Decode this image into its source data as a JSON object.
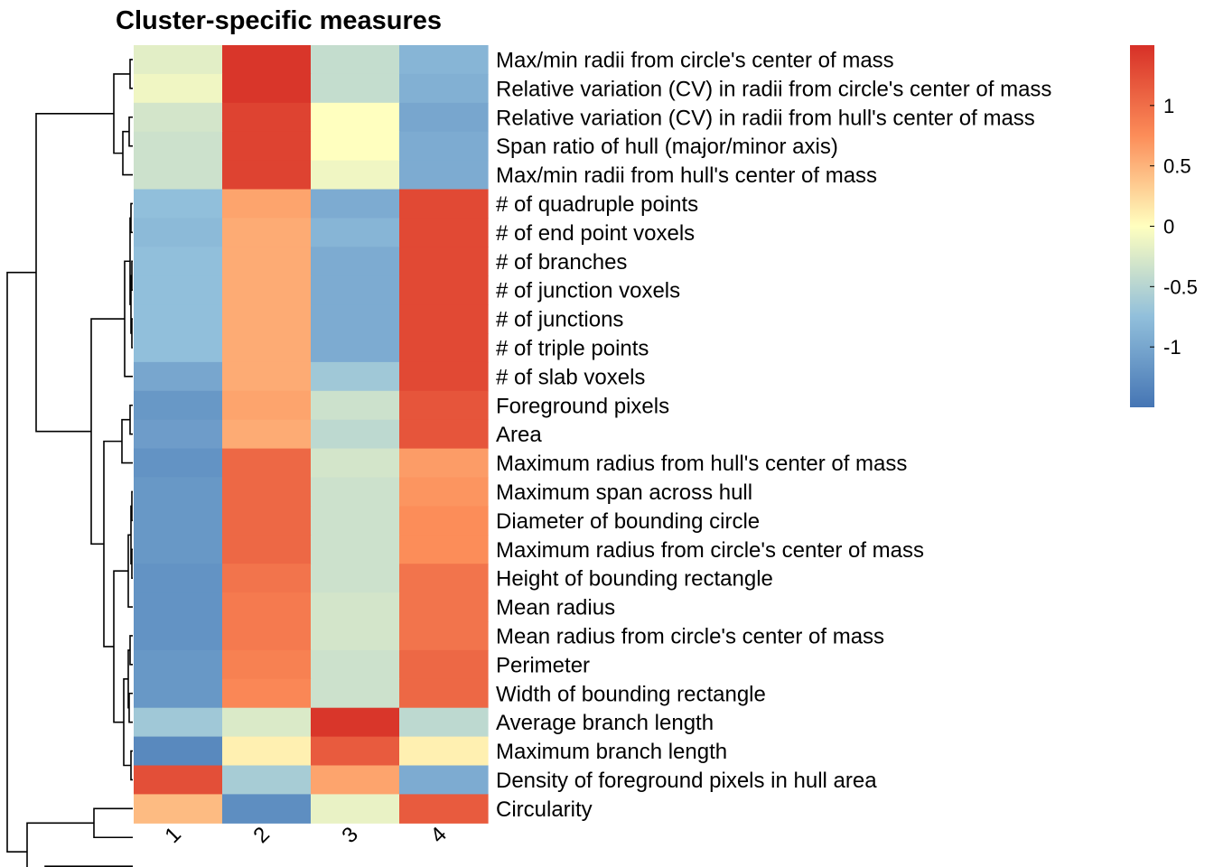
{
  "chart_data": {
    "type": "heatmap",
    "title": "Cluster-specific measures",
    "columns": [
      "1",
      "2",
      "3",
      "4"
    ],
    "rows": [
      "Max/min radii from circle's center of mass",
      "Relative variation (CV) in radii from circle's center of mass",
      "Relative variation (CV) in radii from hull's center of mass",
      "Span ratio of hull (major/minor axis)",
      "Max/min radii from hull's center of mass",
      "# of quadruple points",
      "# of end point voxels",
      "# of branches",
      "# of junction voxels",
      "# of junctions",
      "# of triple points",
      "# of slab voxels",
      "Foreground pixels",
      "Area",
      "Maximum radius from hull's center of mass",
      "Maximum span across hull",
      "Diameter of bounding circle",
      "Maximum radius from circle's center of mass",
      "Height of bounding rectangle",
      "Mean radius",
      "Mean radius from circle's center of mass",
      "Perimeter",
      "Width of bounding rectangle",
      "Average branch length",
      "Maximum branch length",
      "Density of foreground pixels in hull area",
      "Circularity"
    ],
    "values": [
      [
        -0.2,
        1.45,
        -0.4,
        -0.85
      ],
      [
        -0.1,
        1.45,
        -0.4,
        -0.9
      ],
      [
        -0.3,
        1.35,
        0.0,
        -1.0
      ],
      [
        -0.35,
        1.35,
        0.0,
        -0.95
      ],
      [
        -0.35,
        1.35,
        -0.1,
        -0.95
      ],
      [
        -0.75,
        0.6,
        -0.95,
        1.3
      ],
      [
        -0.8,
        0.55,
        -0.85,
        1.3
      ],
      [
        -0.75,
        0.55,
        -0.95,
        1.3
      ],
      [
        -0.75,
        0.55,
        -0.95,
        1.3
      ],
      [
        -0.75,
        0.55,
        -0.95,
        1.3
      ],
      [
        -0.75,
        0.55,
        -0.95,
        1.3
      ],
      [
        -1.0,
        0.55,
        -0.65,
        1.3
      ],
      [
        -1.15,
        0.6,
        -0.35,
        1.2
      ],
      [
        -1.1,
        0.55,
        -0.45,
        1.2
      ],
      [
        -1.2,
        1.05,
        -0.3,
        0.65
      ],
      [
        -1.15,
        1.05,
        -0.35,
        0.7
      ],
      [
        -1.15,
        1.05,
        -0.35,
        0.75
      ],
      [
        -1.15,
        1.05,
        -0.35,
        0.75
      ],
      [
        -1.2,
        0.95,
        -0.35,
        0.95
      ],
      [
        -1.2,
        0.9,
        -0.3,
        0.95
      ],
      [
        -1.2,
        0.9,
        -0.3,
        0.95
      ],
      [
        -1.15,
        0.85,
        -0.35,
        1.05
      ],
      [
        -1.15,
        0.8,
        -0.35,
        1.05
      ],
      [
        -0.65,
        -0.25,
        1.45,
        -0.45
      ],
      [
        -1.3,
        0.1,
        1.15,
        0.1
      ],
      [
        1.25,
        -0.6,
        0.6,
        -0.95
      ],
      [
        0.45,
        -1.25,
        -0.15,
        1.15
      ]
    ],
    "legend": {
      "ticks": [
        1,
        0.5,
        0,
        -0.5,
        -1
      ],
      "tick_labels": [
        "1",
        "0.5",
        "0",
        "-0.5",
        "-1"
      ],
      "range": [
        -1.5,
        1.5
      ],
      "placement": "right"
    },
    "colors": {
      "low": "#4575b4",
      "low_mid": "#91bfdb",
      "mid": "#ffffbf",
      "high_mid": "#fc8d59",
      "high": "#d73027"
    },
    "row_dendrogram": true
  }
}
